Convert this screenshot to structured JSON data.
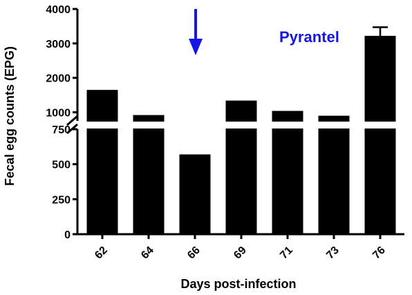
{
  "chart_data": {
    "type": "bar",
    "categories": [
      "62",
      "64",
      "66",
      "69",
      "71",
      "73",
      "76"
    ],
    "values": [
      1650,
      920,
      570,
      1340,
      1040,
      900,
      3220
    ],
    "error_upper": [
      null,
      null,
      null,
      null,
      null,
      null,
      3470
    ],
    "xlabel": "Days post-infection",
    "ylabel": "Fecal egg counts (EPG)",
    "y_axis_break": true,
    "y_lower_range": [
      0,
      750
    ],
    "y_upper_range": [
      750,
      4000
    ],
    "y_lower_ticks": [
      "0",
      "250",
      "500",
      "750"
    ],
    "y_upper_ticks": [
      "1000",
      "2000",
      "3000",
      "4000"
    ],
    "bar_color": "#000000",
    "annotation": {
      "text": "Pyrantel",
      "color": "#1515e6",
      "arrow_at_category": "66"
    },
    "grid": false,
    "legend": "none"
  }
}
